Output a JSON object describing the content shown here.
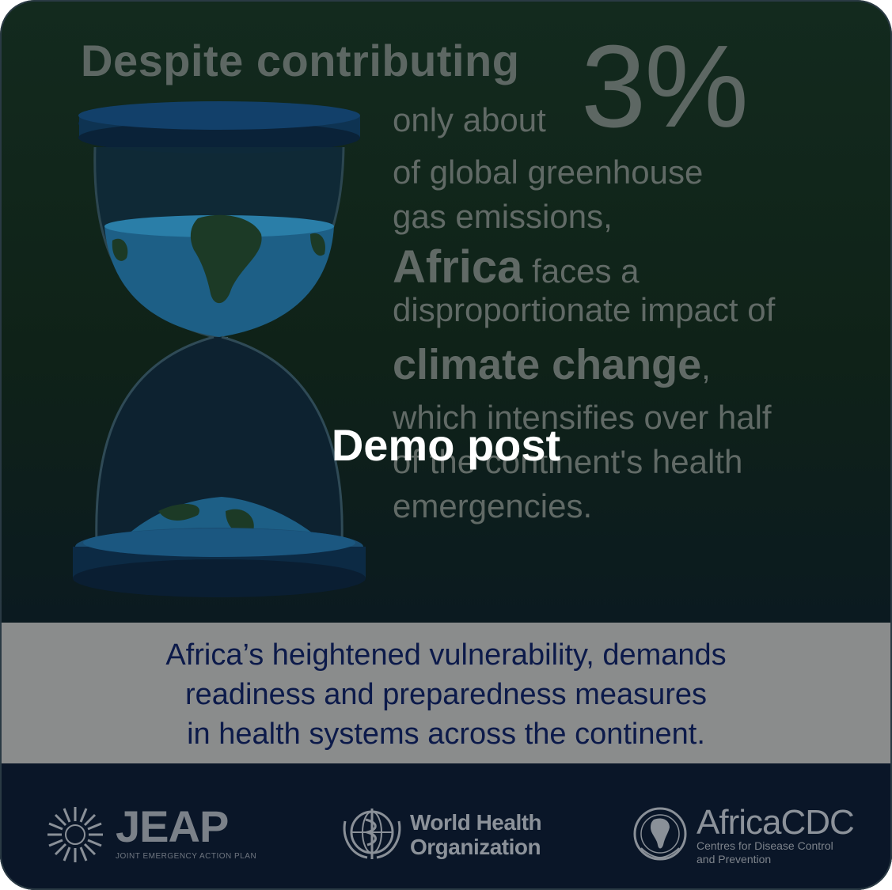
{
  "headline": {
    "lead": "Despite contributing",
    "percent": "3%"
  },
  "statement": {
    "line1": "only about",
    "line2": "of global greenhouse",
    "line3": "gas emissions,",
    "africa": "Africa",
    "line4_rest": " faces a",
    "line5": "disproportionate impact of",
    "climate": "climate change",
    "climate_comma": ",",
    "line7": "which intensifies over half",
    "line8": "of the continent's health",
    "line9": "emergencies."
  },
  "overlay": {
    "label": "Demo post"
  },
  "band": {
    "line1": "Africa’s heightened vulnerability, demands",
    "line2": "readiness and preparedness measures",
    "line3": "in health systems across the continent."
  },
  "logos": {
    "jeap": {
      "name": "JEAP",
      "subtitle": "JOINT EMERGENCY ACTION PLAN",
      "icon": "jeap-sunburst-icon"
    },
    "who": {
      "line1": "World Health",
      "line2": "Organization",
      "icon": "who-emblem-icon"
    },
    "cdc": {
      "name": "AfricaCDC",
      "line1": "Centres for Disease Control",
      "line2": "and Prevention",
      "icon": "africa-cdc-emblem-icon"
    }
  },
  "colors": {
    "background": "#0f2218",
    "band": "#8a8c8c",
    "footer": "#0a1628",
    "band_text": "#0c1a4a"
  }
}
